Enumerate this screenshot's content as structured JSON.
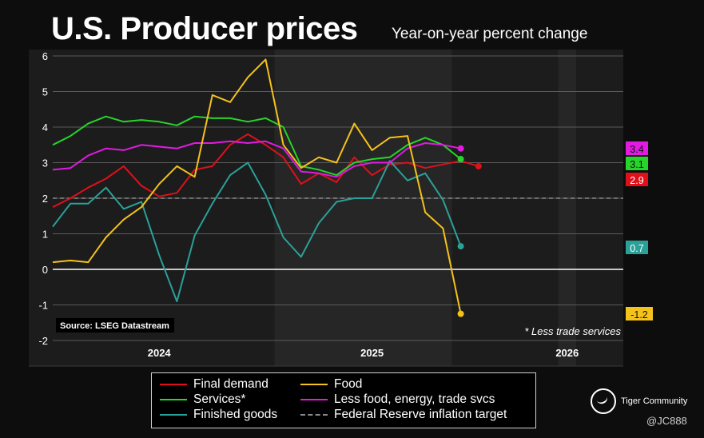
{
  "header": {
    "title": "U.S. Producer prices",
    "subtitle": "Year-on-year percent change"
  },
  "chart_data": {
    "type": "line",
    "title": "U.S. Producer prices",
    "subtitle": "Year-on-year percent change",
    "ylim": [
      -2,
      6
    ],
    "yticks": [
      -2,
      -1,
      0,
      1,
      2,
      3,
      4,
      5,
      6
    ],
    "x_start": "2023-07",
    "x_count": 30,
    "year_labels": [
      {
        "label": "2024",
        "index": 6
      },
      {
        "label": "2025",
        "index": 18
      },
      {
        "label": "2026",
        "index": 29
      }
    ],
    "reference_line": {
      "name": "Federal Reserve inflation target",
      "value": 2,
      "color": "#8a8a8a"
    },
    "series": [
      {
        "name": "Final demand",
        "color": "#e0101b",
        "end_label": "2.9",
        "values": [
          1.75,
          2.0,
          2.3,
          2.55,
          2.9,
          2.35,
          2.05,
          2.15,
          2.8,
          2.9,
          3.5,
          3.8,
          3.5,
          3.15,
          2.4,
          2.7,
          2.45,
          3.15,
          2.65,
          2.95,
          3.0,
          2.85,
          2.95,
          3.05,
          2.9
        ]
      },
      {
        "name": "Services*",
        "color": "#27d42a",
        "end_label": "3.1",
        "values": [
          3.5,
          3.75,
          4.1,
          4.3,
          4.15,
          4.2,
          4.15,
          4.05,
          4.3,
          4.25,
          4.25,
          4.15,
          4.25,
          4.0,
          2.9,
          2.8,
          2.65,
          3.0,
          3.1,
          3.15,
          3.5,
          3.7,
          3.5,
          3.1
        ]
      },
      {
        "name": "Finished goods",
        "color": "#2aa198",
        "end_label": "0.7",
        "values": [
          1.2,
          1.85,
          1.85,
          2.3,
          1.7,
          1.9,
          0.4,
          -0.9,
          0.95,
          1.85,
          2.65,
          3.0,
          2.1,
          0.9,
          0.35,
          1.3,
          1.9,
          2.0,
          2.0,
          3.05,
          2.5,
          2.7,
          1.95,
          0.65
        ]
      },
      {
        "name": "Food",
        "color": "#f5c21b",
        "end_label": "-1.2",
        "values": [
          0.2,
          0.25,
          0.2,
          0.9,
          1.4,
          1.75,
          2.4,
          2.9,
          2.6,
          4.9,
          4.7,
          5.4,
          5.9,
          3.5,
          2.85,
          3.15,
          3.0,
          4.1,
          3.35,
          3.7,
          3.75,
          1.6,
          1.15,
          -1.25
        ]
      },
      {
        "name": "Less food, energy, trade svcs",
        "color": "#e21ae2",
        "end_label": "3.4",
        "values": [
          2.8,
          2.85,
          3.2,
          3.4,
          3.35,
          3.5,
          3.45,
          3.4,
          3.55,
          3.55,
          3.6,
          3.55,
          3.6,
          3.4,
          2.75,
          2.7,
          2.6,
          2.9,
          3.0,
          3.0,
          3.4,
          3.55,
          3.5,
          3.4
        ]
      }
    ],
    "shaded_bands": [
      [
        12.5,
        22.5
      ],
      [
        28.5,
        29.5
      ]
    ],
    "source": "Source: LSEG Datastream",
    "footnote": "* Less trade services"
  },
  "legend": {
    "items": [
      {
        "label": "Final demand",
        "color": "#e0101b"
      },
      {
        "label": "Services*",
        "color": "#27d42a"
      },
      {
        "label": "Finished goods",
        "color": "#2aa198"
      },
      {
        "label": "Food",
        "color": "#f5c21b"
      },
      {
        "label": "Less food, energy, trade svcs",
        "color": "#e21ae2"
      },
      {
        "label": "Federal Reserve inflation target",
        "color": "#8a8a8a"
      }
    ]
  },
  "branding": {
    "name": "Tiger Community",
    "handle": "@JC888"
  }
}
